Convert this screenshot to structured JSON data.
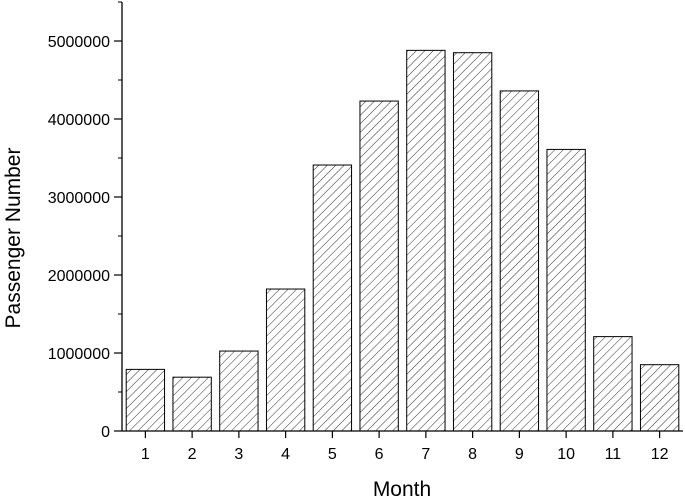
{
  "chart_data": {
    "type": "bar",
    "title": "",
    "xlabel": "Month",
    "ylabel": "Passenger Number",
    "categories": [
      "1",
      "2",
      "3",
      "4",
      "5",
      "6",
      "7",
      "8",
      "9",
      "10",
      "11",
      "12"
    ],
    "values": [
      790000,
      690000,
      1025000,
      1820000,
      3410000,
      4230000,
      4880000,
      4850000,
      4360000,
      3610000,
      1210000,
      850000
    ],
    "ylim": [
      0,
      5500000
    ],
    "yticks": [
      0,
      1000000,
      2000000,
      3000000,
      4000000,
      5000000
    ],
    "ytick_labels": [
      "0",
      "1000000",
      "2000000",
      "3000000",
      "4000000",
      "5000000"
    ],
    "bar_fill": "diagonal-hatch",
    "colors": {
      "bar_stroke": "#000000",
      "hatch": "#000000",
      "background": "#ffffff"
    },
    "grid": false,
    "legend": "none"
  }
}
